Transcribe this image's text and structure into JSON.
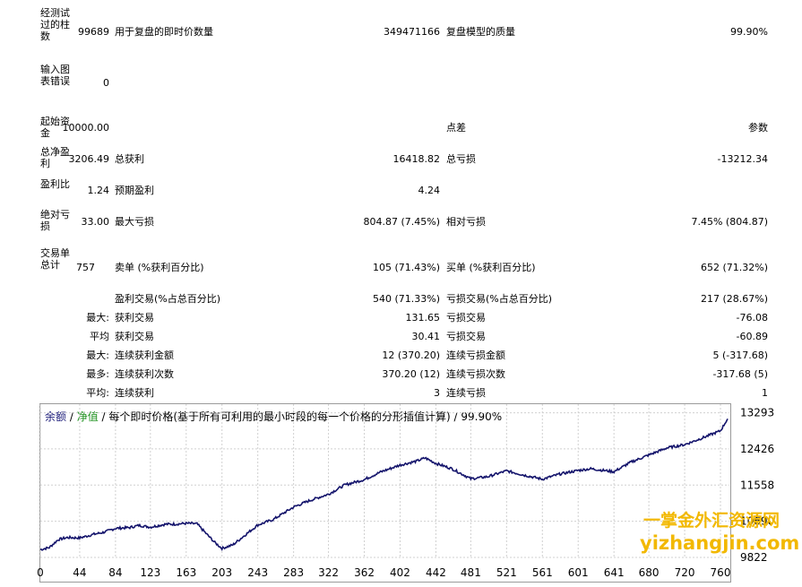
{
  "report": {
    "bars_tested_label": "经测试过的柱数",
    "bars_tested_value": "99689",
    "ticks_label": "用于复盘的即时价数量",
    "ticks_value": "349471166",
    "model_quality_label": "复盘模型的质量",
    "model_quality_value": "99.90%",
    "chart_errors_label": "输入图表错误",
    "chart_errors_value": "0",
    "initial_deposit_label": "起始资金",
    "initial_deposit_value": "10000.00",
    "spread_label": "点差",
    "spread_value": "参数",
    "net_profit_label": "总净盈利",
    "net_profit_value": "3206.49",
    "gross_profit_label": "总获利",
    "gross_profit_value": "16418.82",
    "gross_loss_label": "总亏损",
    "gross_loss_value": "-13212.34",
    "profit_factor_label": "盈利比",
    "profit_factor_value": "1.24",
    "expected_payoff_label": "预期盈利",
    "expected_payoff_value": "4.24",
    "abs_drawdown_label": "绝对亏损",
    "abs_drawdown_value": "33.00",
    "max_drawdown_label": "最大亏损",
    "max_drawdown_value": "804.87 (7.45%)",
    "rel_drawdown_label": "相对亏损",
    "rel_drawdown_value": "7.45% (804.87)",
    "total_trades_label": "交易单总计",
    "total_trades_value": "757",
    "short_label": "卖单 (%获利百分比)",
    "short_value": "105 (71.43%)",
    "long_label": "买单 (%获利百分比)",
    "long_value": "652 (71.32%)",
    "profit_trades_label": "盈利交易(%占总百分比)",
    "profit_trades_value": "540 (71.33%)",
    "loss_trades_label": "亏损交易(%占总百分比)",
    "loss_trades_value": "217 (28.67%)",
    "rows": [
      {
        "prefix": "最大:",
        "l_label": "获利交易",
        "l_value": "131.65",
        "r_label": "亏损交易",
        "r_value": "-76.08"
      },
      {
        "prefix": "平均",
        "l_label": "获利交易",
        "l_value": "30.41",
        "r_label": "亏损交易",
        "r_value": "-60.89"
      },
      {
        "prefix": "最大:",
        "l_label": "连续获利金额",
        "l_value": "12 (370.20)",
        "r_label": "连续亏损金额",
        "r_value": "5 (-317.68)"
      },
      {
        "prefix": "最多:",
        "l_label": "连续获利次数",
        "l_value": "370.20 (12)",
        "r_label": "连续亏损次数",
        "r_value": "-317.68 (5)"
      },
      {
        "prefix": "平均:",
        "l_label": "连续获利",
        "l_value": "3",
        "r_label": "连续亏损",
        "r_value": "1"
      }
    ]
  },
  "chart_caption": {
    "balance": "余额",
    "sep1": " / ",
    "equity": "净值",
    "sep2": " / ",
    "description": "每个即时价格(基于所有可利用的最小时段的每一个价格的分形插值计算) / 99.90%"
  },
  "watermark": {
    "line1": "一掌金外汇资源网",
    "line2": "yizhangjin.com"
  },
  "colors": {
    "balance": "#1c1c7a",
    "equity": "#1a8f1a",
    "line": "#13136b"
  },
  "chart_data": {
    "type": "line",
    "x_ticks": [
      "0",
      "44",
      "84",
      "123",
      "163",
      "203",
      "243",
      "283",
      "322",
      "362",
      "402",
      "442",
      "481",
      "521",
      "561",
      "601",
      "641",
      "680",
      "720",
      "760"
    ],
    "y_ticks": [
      "13293",
      "12426",
      "11558",
      "10690",
      "9822"
    ],
    "xlim": [
      0,
      770
    ],
    "ylim": [
      9822,
      13500
    ],
    "series": [
      {
        "x": [
          0,
          10,
          20,
          30,
          44,
          60,
          70,
          84,
          100,
          110,
          123,
          140,
          150,
          163,
          175,
          185,
          195,
          203,
          215,
          230,
          243,
          260,
          283,
          300,
          322,
          340,
          362,
          380,
          402,
          420,
          430,
          442,
          460,
          481,
          500,
          521,
          540,
          561,
          580,
          601,
          615,
          641,
          660,
          680,
          700,
          720,
          735,
          760,
          768
        ],
        "y": [
          10010,
          10060,
          10250,
          10300,
          10290,
          10380,
          10420,
          10520,
          10540,
          10590,
          10550,
          10620,
          10620,
          10640,
          10630,
          10400,
          10180,
          10040,
          10120,
          10380,
          10600,
          10730,
          11030,
          11180,
          11340,
          11560,
          11690,
          11870,
          12040,
          12130,
          12210,
          12080,
          11950,
          11710,
          11760,
          11900,
          11800,
          11700,
          11820,
          11910,
          11950,
          11880,
          12110,
          12280,
          12450,
          12530,
          12650,
          12860,
          13150
        ]
      }
    ]
  }
}
